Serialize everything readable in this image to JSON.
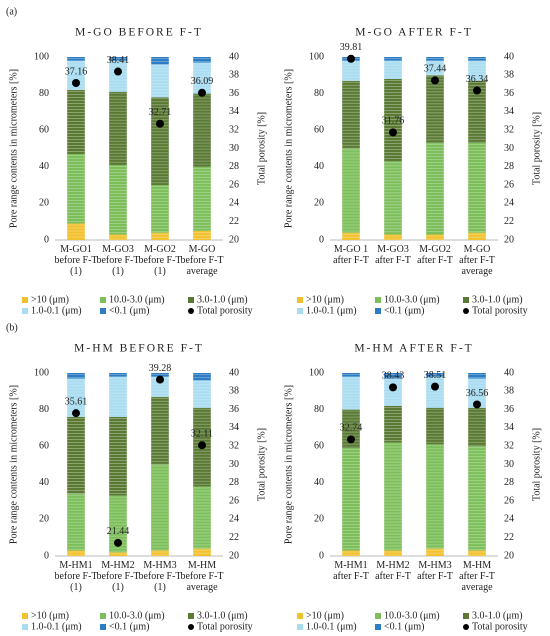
{
  "panel_labels": [
    "(a)",
    "(b)"
  ],
  "chart_data": [
    {
      "type": "bar",
      "stacked": true,
      "title": "M-GO BEFORE F-T",
      "ylabel": "Pore range contents in micrometers [%]",
      "y2label": "Total porosity [%]",
      "categories": [
        "M-GO1 before F-T (1)",
        "M-GO3 before F-T (1)",
        "M-GO2 before F-T (1)",
        "M-GO before F-T average"
      ],
      "series": [
        {
          "name": ">10 (μm)",
          "color": "#f2c12e",
          "values": [
            9,
            3,
            4,
            5
          ]
        },
        {
          "name": "10.0-3.0 (μm)",
          "color": "#7cbf5a",
          "values": [
            38,
            38,
            26,
            35
          ]
        },
        {
          "name": "3.0-1.0 (μm)",
          "color": "#5a7a34",
          "values": [
            35,
            40,
            48,
            40
          ]
        },
        {
          "name": "1.0-0.1 (μm)",
          "color": "#a8dcf0",
          "values": [
            16,
            17,
            18,
            17
          ]
        },
        {
          "name": "<0.1 (μm)",
          "color": "#2e7dc4",
          "values": [
            2,
            2,
            4,
            3
          ]
        },
        {
          "name": "Total porosity",
          "color": "#000000",
          "axis": "y2",
          "values": [
            37.16,
            38.41,
            32.71,
            36.09
          ]
        }
      ],
      "ylim": [
        0,
        100
      ],
      "yticks": [
        0,
        20,
        40,
        60,
        80,
        100
      ],
      "y2lim": [
        20,
        40
      ],
      "y2ticks": [
        20,
        22,
        24,
        26,
        28,
        30,
        32,
        34,
        36,
        38,
        40
      ],
      "legend": "bottom"
    },
    {
      "type": "bar",
      "stacked": true,
      "title": "M-GO AFTER F-T",
      "ylabel": "Pore range contents in micrometers [%]",
      "y2label": "Total porosity [%]",
      "categories": [
        "M-GO 1 after F-T",
        "M-GO3 after F-T",
        "M-GO2 after F-T",
        "M-GO after F-T average"
      ],
      "series": [
        {
          "name": ">10 (μm)",
          "color": "#f2c12e",
          "values": [
            4,
            3,
            3,
            4
          ]
        },
        {
          "name": "10.0-3.0 (μm)",
          "color": "#7cbf5a",
          "values": [
            46,
            40,
            50,
            49
          ]
        },
        {
          "name": "3.0-1.0 (μm)",
          "color": "#5a7a34",
          "values": [
            37,
            45,
            37,
            34
          ]
        },
        {
          "name": "1.0-0.1 (μm)",
          "color": "#a8dcf0",
          "values": [
            11,
            10,
            8,
            11
          ]
        },
        {
          "name": "<0.1 (μm)",
          "color": "#2e7dc4",
          "values": [
            2,
            2,
            2,
            2
          ]
        },
        {
          "name": "Total porosity",
          "color": "#000000",
          "axis": "y2",
          "values": [
            39.81,
            31.76,
            37.44,
            36.34
          ]
        }
      ],
      "ylim": [
        0,
        100
      ],
      "yticks": [
        0,
        20,
        40,
        60,
        80,
        100
      ],
      "y2lim": [
        20,
        40
      ],
      "y2ticks": [
        20,
        22,
        24,
        26,
        28,
        30,
        32,
        34,
        36,
        38,
        40
      ],
      "legend": "bottom"
    },
    {
      "type": "bar",
      "stacked": true,
      "title": "M-HM BEFORE F-T",
      "ylabel": "Pore range contents in micrometers [%]",
      "y2label": "Total porosity [%]",
      "categories": [
        "M-HM1 before F-T (1)",
        "M-HM2 before F-T (1)",
        "M-HM3 before F-T (1)",
        "M-HM before F-T average"
      ],
      "series": [
        {
          "name": ">10 (μm)",
          "color": "#f2c12e",
          "values": [
            3,
            2,
            3,
            4
          ]
        },
        {
          "name": "10.0-3.0 (μm)",
          "color": "#7cbf5a",
          "values": [
            31,
            31,
            47,
            34
          ]
        },
        {
          "name": "3.0-1.0 (μm)",
          "color": "#5a7a34",
          "values": [
            42,
            43,
            37,
            43
          ]
        },
        {
          "name": "1.0-0.1 (μm)",
          "color": "#a8dcf0",
          "values": [
            21,
            22,
            11,
            15
          ]
        },
        {
          "name": "<0.1 (μm)",
          "color": "#2e7dc4",
          "values": [
            3,
            2,
            2,
            4
          ]
        },
        {
          "name": "Total porosity",
          "color": "#000000",
          "axis": "y2",
          "values": [
            35.61,
            21.44,
            39.28,
            32.11
          ]
        }
      ],
      "ylim": [
        0,
        100
      ],
      "yticks": [
        0,
        20,
        40,
        60,
        80,
        100
      ],
      "y2lim": [
        20,
        40
      ],
      "y2ticks": [
        20,
        22,
        24,
        26,
        28,
        30,
        32,
        34,
        36,
        38,
        40
      ],
      "legend": "bottom"
    },
    {
      "type": "bar",
      "stacked": true,
      "title": "M-HM AFTER F-T",
      "ylabel": "Pore range contents in micrometers [%]",
      "y2label": "Total porosity [%]",
      "categories": [
        "M-HM1 after F-T",
        "M-HM2 after F-T",
        "M-HM3 after F-T",
        "M-HM after F-T average"
      ],
      "series": [
        {
          "name": ">10 (μm)",
          "color": "#f2c12e",
          "values": [
            3,
            3,
            4,
            3
          ]
        },
        {
          "name": "10.0-3.0 (μm)",
          "color": "#7cbf5a",
          "values": [
            56,
            59,
            57,
            57
          ]
        },
        {
          "name": "3.0-1.0 (μm)",
          "color": "#5a7a34",
          "values": [
            21,
            20,
            20,
            21
          ]
        },
        {
          "name": "1.0-0.1 (μm)",
          "color": "#a8dcf0",
          "values": [
            18,
            15,
            17,
            16
          ]
        },
        {
          "name": "<0.1 (μm)",
          "color": "#2e7dc4",
          "values": [
            2,
            3,
            2,
            3
          ]
        },
        {
          "name": "Total porosity",
          "color": "#000000",
          "axis": "y2",
          "values": [
            32.74,
            38.43,
            38.51,
            36.56
          ]
        }
      ],
      "ylim": [
        0,
        100
      ],
      "yticks": [
        0,
        20,
        40,
        60,
        80,
        100
      ],
      "y2lim": [
        20,
        40
      ],
      "y2ticks": [
        20,
        22,
        24,
        26,
        28,
        30,
        32,
        34,
        36,
        38,
        40
      ],
      "legend": "bottom"
    }
  ]
}
